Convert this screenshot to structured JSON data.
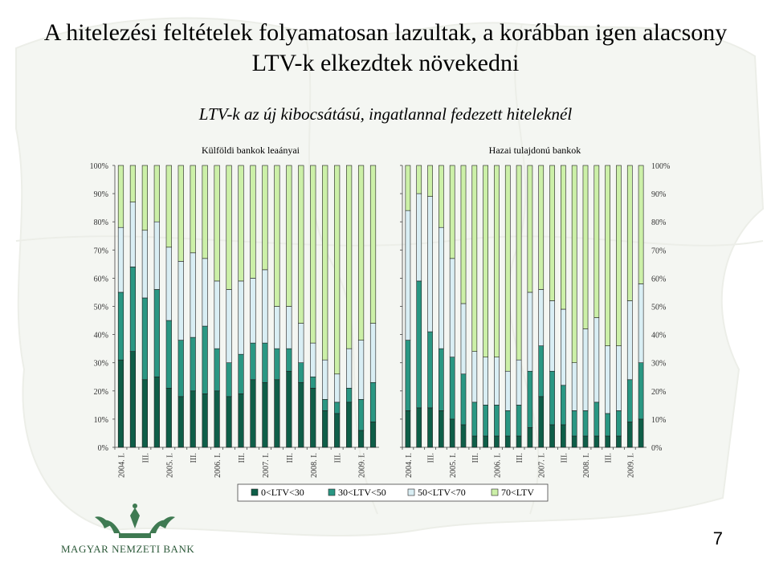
{
  "title": "A hitelezési feltételek folyamatosan lazultak, a korábban igen alacsony LTV-k elkezdtek növekedni",
  "subtitle": "LTV-k az új kibocsátású, ingatlannal fedezett hiteleknél",
  "page_number": "7",
  "logo_text": "MAGYAR NEMZETI BANK",
  "chart_data": {
    "type": "bar",
    "stacked": true,
    "ylim": [
      0,
      100
    ],
    "y_ticks": [
      "0%",
      "10%",
      "20%",
      "30%",
      "40%",
      "50%",
      "60%",
      "70%",
      "80%",
      "90%",
      "100%"
    ],
    "legend": [
      "0<LTV<30",
      "30<LTV<50",
      "50<LTV<70",
      "70<LTV"
    ],
    "legend_position": "bottom",
    "colors": [
      "#0e5e48",
      "#2a9783",
      "#d9eef4",
      "#ccf0a8"
    ],
    "panels": [
      {
        "title": "Külföldi bankok leaányai",
        "x_labels": [
          "2004. I.",
          "",
          "III.",
          "",
          "2005. I.",
          "",
          "III.",
          "",
          "2006. I.",
          "",
          "III.",
          "",
          "2007. I.",
          "",
          "III.",
          "",
          "2008. I.",
          "",
          "III.",
          "",
          "2009. I.",
          ""
        ],
        "series": [
          {
            "name": "0<LTV<30",
            "values": [
              31,
              34,
              24,
              25,
              21,
              18,
              20,
              19,
              20,
              18,
              19,
              24,
              23,
              24,
              27,
              23,
              21,
              13,
              12,
              16,
              6,
              9
            ]
          },
          {
            "name": "30<LTV<50",
            "values": [
              24,
              30,
              29,
              31,
              24,
              20,
              19,
              24,
              15,
              12,
              14,
              13,
              14,
              11,
              8,
              7,
              4,
              4,
              4,
              5,
              11,
              14
            ]
          },
          {
            "name": "50<LTV<70",
            "values": [
              23,
              23,
              24,
              24,
              26,
              28,
              30,
              24,
              24,
              26,
              26,
              23,
              26,
              15,
              15,
              14,
              12,
              14,
              10,
              14,
              21,
              21
            ]
          },
          {
            "name": "70<LTV",
            "values": [
              22,
              13,
              23,
              20,
              29,
              34,
              31,
              33,
              41,
              44,
              41,
              40,
              37,
              50,
              50,
              56,
              63,
              69,
              74,
              65,
              62,
              56
            ]
          }
        ]
      },
      {
        "title": "Hazai tulajdonú bankok",
        "x_labels": [
          "2004. I.",
          "",
          "III.",
          "",
          "2005. I.",
          "",
          "III.",
          "",
          "2006. I.",
          "",
          "III.",
          "",
          "2007. I.",
          "",
          "III.",
          "",
          "2008. I.",
          "",
          "III.",
          "",
          "2009. I.",
          ""
        ],
        "series": [
          {
            "name": "0<LTV<30",
            "values": [
              13,
              14,
              14,
              13,
              10,
              8,
              4,
              4,
              4,
              4,
              4,
              7,
              18,
              8,
              8,
              4,
              4,
              4,
              4,
              4,
              9,
              10
            ]
          },
          {
            "name": "30<LTV<50",
            "values": [
              25,
              45,
              27,
              22,
              22,
              18,
              12,
              11,
              11,
              9,
              11,
              20,
              18,
              19,
              14,
              9,
              9,
              12,
              8,
              9,
              15,
              20
            ]
          },
          {
            "name": "50<LTV<70",
            "values": [
              46,
              31,
              48,
              43,
              35,
              25,
              18,
              17,
              17,
              14,
              16,
              28,
              20,
              25,
              27,
              17,
              29,
              30,
              24,
              23,
              28,
              28
            ]
          },
          {
            "name": "70<LTV",
            "values": [
              16,
              10,
              11,
              22,
              33,
              49,
              66,
              68,
              68,
              73,
              69,
              45,
              44,
              48,
              51,
              70,
              58,
              54,
              64,
              64,
              48,
              42
            ]
          }
        ]
      }
    ]
  }
}
